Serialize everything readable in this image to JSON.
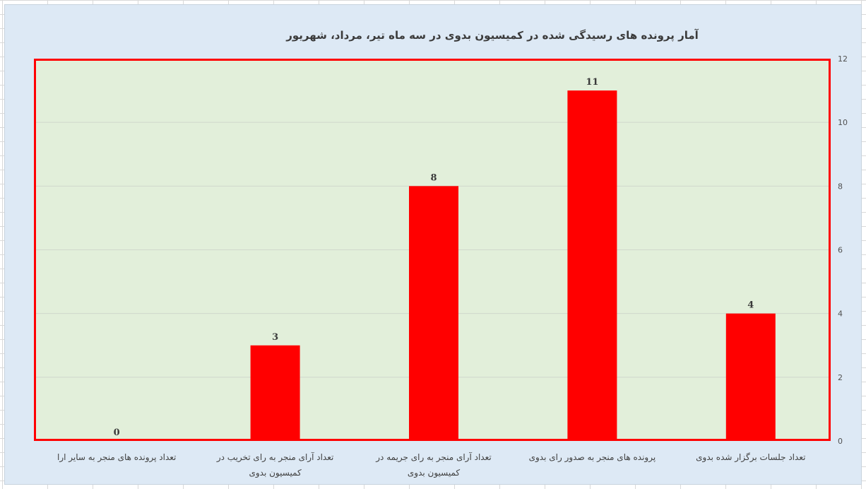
{
  "chart_data": {
    "type": "bar",
    "title": "آمار  پرونده های رسیدگی شده در کمیسیون بدوی در سه ماه تیر، مرداد، شهریور",
    "categories": [
      "تعداد پرونده های منجر به سایر ارا",
      "تعداد آرای منجر به رای تخریب در کمیسیون بدوی",
      "تعداد آرای منجر به رای جریمه در کمیسیون بدوی",
      "پرونده های منجر به صدور رای بدوی",
      "تعداد جلسات برگزار شده بدوی"
    ],
    "values": [
      0,
      3,
      8,
      11,
      4
    ],
    "data_labels": [
      "0",
      "3",
      "8",
      "11",
      "4"
    ],
    "ylim": [
      0,
      12
    ],
    "yticks": [
      "0",
      "2",
      "4",
      "6",
      "8",
      "10",
      "12"
    ],
    "y_axis_side": "right",
    "grid": true,
    "xlabel": "",
    "ylabel": "",
    "colors": {
      "bar": "#ff0000",
      "plot_background": "#e2efda",
      "plot_border": "#ff0000",
      "chart_background": "#dde9f5",
      "gridline": "#d0d8cc"
    }
  }
}
